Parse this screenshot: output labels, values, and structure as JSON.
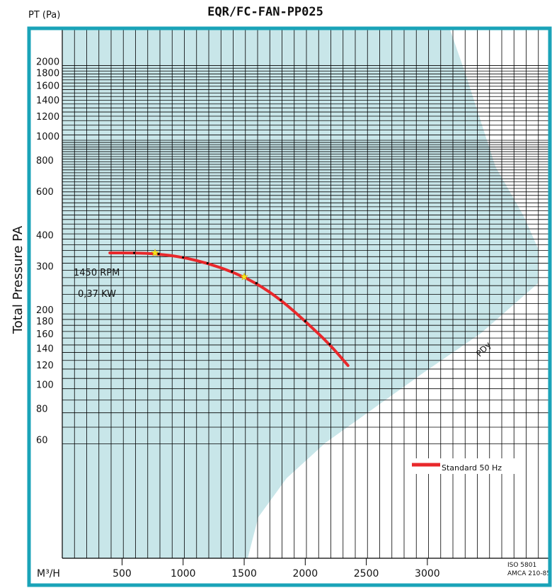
{
  "chart_data": {
    "type": "line",
    "title": "EQR/FC-FAN-PP025",
    "y_unit_label": "PT (Pa)",
    "ylabel": "Total   Pressure PA",
    "x_unit_label": "M³/H",
    "y_scale": "log",
    "ylim": [
      50,
      2200
    ],
    "xlim": [
      0,
      3400
    ],
    "y_ticks": [
      2000,
      1800,
      1600,
      1400,
      1200,
      1000,
      800,
      600,
      400,
      300,
      200,
      180,
      160,
      140,
      120,
      100,
      80,
      60
    ],
    "x_ticks": [
      500,
      1000,
      1500,
      2000,
      2500,
      3000
    ],
    "grid": true,
    "annotations": {
      "rpm": "1450 RPM",
      "power": "0,37 KW",
      "pdy": "PDy",
      "iso": "ISO 5801",
      "amca": "AMCA 210-85"
    },
    "series": [
      {
        "name": "Standard 50 Hz",
        "color": "#e8282b",
        "x": [
          400,
          600,
          800,
          1000,
          1200,
          1400,
          1600,
          1800,
          2000,
          2200,
          2350
        ],
        "y": [
          352,
          352,
          349,
          338,
          320,
          296,
          266,
          228,
          187,
          151,
          124
        ]
      }
    ],
    "markers": [
      {
        "x": 770,
        "y": 352
      },
      {
        "x": 1500,
        "y": 282
      }
    ],
    "legend_position": "bottom-right"
  },
  "colors": {
    "frame": "#1aa3b8",
    "operating_region": "#c8e6e9",
    "grid": "#000000",
    "curve": "#e8282b",
    "marker": "#f7e21a"
  }
}
